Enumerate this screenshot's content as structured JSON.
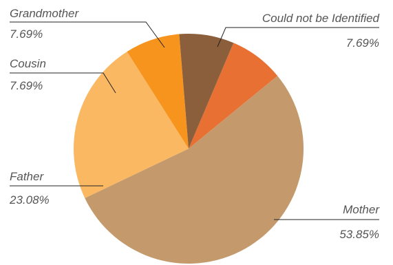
{
  "chart_data": {
    "type": "pie",
    "title": "",
    "colors": {
      "Mother": "#c49a6c",
      "Father": "#fbb862",
      "Cousin": "#f7941e",
      "Grandmother": "#8b5e3c",
      "Could not be Identified": "#e87033"
    },
    "slices": [
      {
        "label": "Could not be Identified",
        "value": 7.69,
        "display": "7.69%"
      },
      {
        "label": "Mother",
        "value": 53.85,
        "display": "53.85%"
      },
      {
        "label": "Father",
        "value": 23.08,
        "display": "23.08%"
      },
      {
        "label": "Cousin",
        "value": 7.69,
        "display": "7.69%"
      },
      {
        "label": "Grandmother",
        "value": 7.69,
        "display": "7.69%"
      }
    ]
  }
}
